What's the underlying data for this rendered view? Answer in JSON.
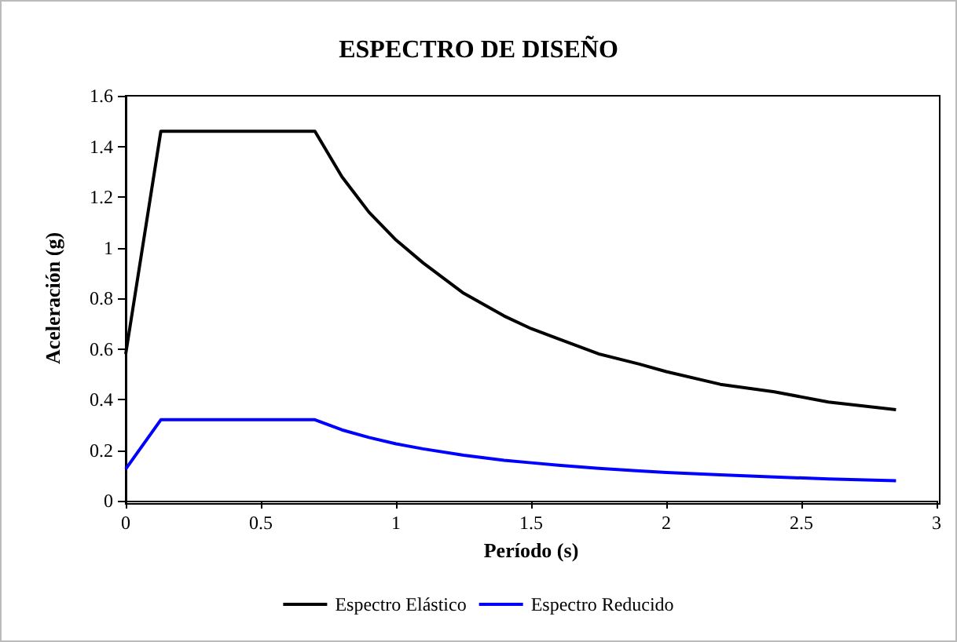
{
  "chart_data": {
    "type": "line",
    "title": "ESPECTRO DE DISEÑO",
    "xlabel": "Período (s)",
    "ylabel": "Aceleración (g)",
    "x": [
      0,
      0.13,
      0.7,
      0.8,
      0.9,
      1.0,
      1.1,
      1.25,
      1.4,
      1.5,
      1.6,
      1.75,
      1.9,
      2.0,
      2.2,
      2.4,
      2.6,
      2.85
    ],
    "series": [
      {
        "name": "Espectro Elástico",
        "color": "#000000",
        "values": [
          0.58,
          1.46,
          1.46,
          1.28,
          1.14,
          1.03,
          0.94,
          0.82,
          0.73,
          0.68,
          0.64,
          0.58,
          0.54,
          0.51,
          0.46,
          0.43,
          0.39,
          0.36
        ]
      },
      {
        "name": "Espectro Reducido",
        "color": "#0000ff",
        "values": [
          0.125,
          0.32,
          0.32,
          0.28,
          0.25,
          0.225,
          0.205,
          0.18,
          0.16,
          0.15,
          0.14,
          0.128,
          0.118,
          0.112,
          0.102,
          0.094,
          0.086,
          0.079
        ]
      }
    ],
    "xlim": [
      0,
      3
    ],
    "xticks": [
      0,
      0.5,
      1,
      1.5,
      2,
      2.5,
      3
    ],
    "ylim": [
      0,
      1.6
    ],
    "yticks": [
      0,
      0.2,
      0.4,
      0.6,
      0.8,
      1,
      1.2,
      1.4,
      1.6
    ],
    "grid": false,
    "legend": "bottom",
    "marker": "none",
    "line_style": "solid"
  }
}
